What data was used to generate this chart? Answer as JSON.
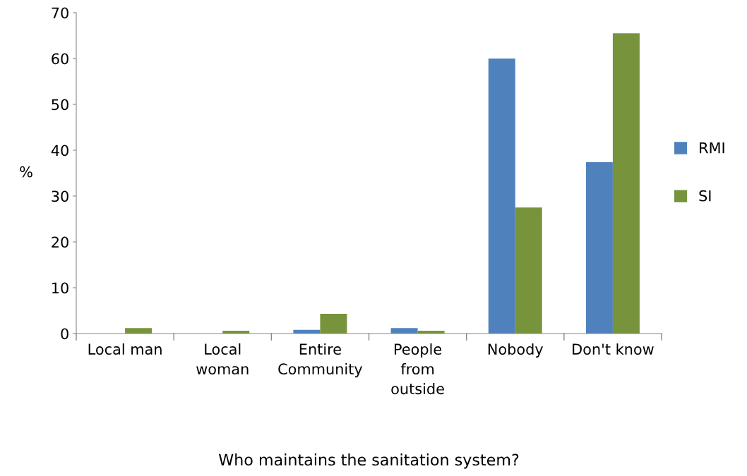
{
  "chart_data": {
    "type": "bar",
    "xlabel": "Who maintains the sanitation system?",
    "ylabel": "%",
    "categories": [
      "Local man",
      "Local\nwoman",
      "Entire\nCommunity",
      "People\nfrom\noutside",
      "Nobody",
      "Don't know"
    ],
    "series": [
      {
        "name": "RMI",
        "color": "#4f81bd",
        "values": [
          0,
          0,
          0.8,
          1.2,
          60.0,
          37.4
        ]
      },
      {
        "name": "SI",
        "color": "#77933c",
        "values": [
          1.2,
          0.6,
          4.3,
          0.6,
          27.5,
          65.5
        ]
      }
    ],
    "ylim": [
      0,
      70
    ],
    "yticks": [
      0,
      10,
      20,
      30,
      40,
      50,
      60,
      70
    ],
    "grid": false,
    "legend": "right"
  }
}
